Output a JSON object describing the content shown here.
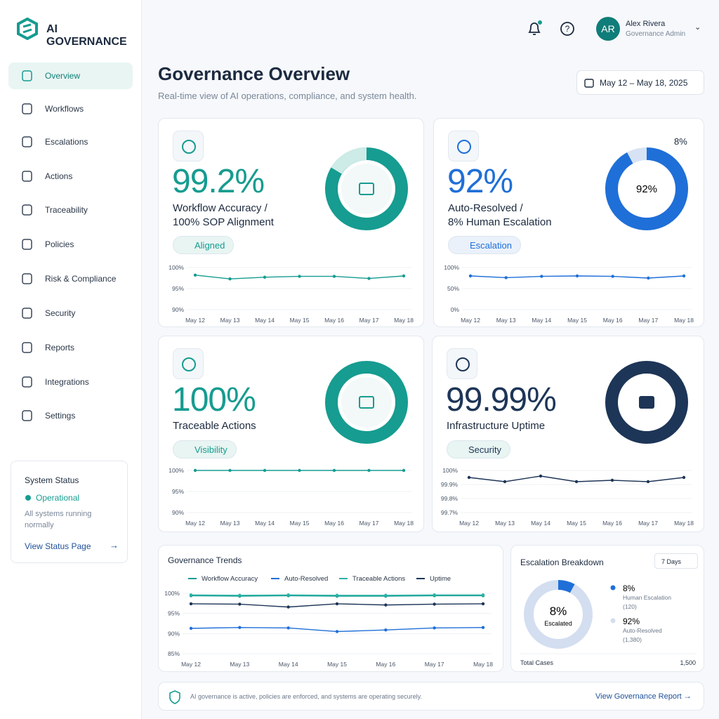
{
  "brand": "AI GOVERNANCE",
  "nav": [
    "Overview",
    "Workflows",
    "Escalations",
    "Actions",
    "Traceability",
    "Policies",
    "Risk & Compliance",
    "Security",
    "Reports",
    "Integrations",
    "Settings"
  ],
  "status": {
    "title": "System Status",
    "state": "Operational",
    "text": "All systems running normally",
    "link": "View Status Page"
  },
  "user": {
    "initials": "AR",
    "name": "Alex Rivera",
    "role": "Governance Admin"
  },
  "header": {
    "title": "Governance Overview",
    "subtitle": "Real-time view of AI operations, compliance, and system health.",
    "date_range": "May 12 – May 18, 2025"
  },
  "cards": [
    {
      "metric": "99.2%",
      "label": [
        "Workflow Accuracy /",
        "100% SOP Alignment"
      ],
      "badge": "Aligned",
      "chart": {
        "type": "line",
        "color": "#169c90",
        "categories": [
          "May 12",
          "May 13",
          "May 14",
          "May 15",
          "May 16",
          "May 17",
          "May 18"
        ],
        "values": [
          98.2,
          97.3,
          97.7,
          97.9,
          97.9,
          97.4,
          98.0
        ],
        "ylim": [
          90,
          100
        ],
        "yticks": [
          {
            "value": 100,
            "label": "100%"
          },
          {
            "value": 95,
            "label": "95%"
          },
          {
            "value": 90,
            "label": "90%"
          }
        ]
      }
    },
    {
      "metric": "92%",
      "label": [
        "Auto-Resolved /",
        "8% Human Escalation"
      ],
      "badge": "Escalation",
      "donut": {
        "values": [
          92,
          8
        ],
        "value_labels": [
          "92%",
          "8%"
        ],
        "colors": [
          "#1f6fd8",
          "#d7e3f4"
        ]
      },
      "chart": {
        "type": "line",
        "color": "#1f6fd8",
        "categories": [
          "May 12",
          "May 13",
          "May 14",
          "May 15",
          "May 16",
          "May 17",
          "May 18"
        ],
        "values": [
          80,
          76,
          79,
          80,
          79,
          75,
          80
        ],
        "ylim": [
          0,
          100
        ],
        "yticks": [
          {
            "value": 100,
            "label": "100%"
          },
          {
            "value": 50,
            "label": "50%"
          },
          {
            "value": 0,
            "label": "0%"
          }
        ]
      }
    },
    {
      "metric": "100%",
      "label": [
        "Traceable Actions"
      ],
      "badge": "Visibility",
      "chart": {
        "type": "line",
        "color": "#169c90",
        "categories": [
          "May 12",
          "May 13",
          "May 14",
          "May 15",
          "May 16",
          "May 17",
          "May 18"
        ],
        "values": [
          100,
          100,
          100,
          100,
          100,
          100,
          100
        ],
        "ylim": [
          90,
          100
        ],
        "yticks": [
          {
            "value": 100,
            "label": "100%"
          },
          {
            "value": 95,
            "label": "95%"
          },
          {
            "value": 90,
            "label": "90%"
          }
        ]
      }
    },
    {
      "metric": "99.99%",
      "label": [
        "Infrastructure Uptime"
      ],
      "badge": "Security",
      "chart": {
        "type": "line",
        "color": "#1d3557",
        "categories": [
          "May 12",
          "May 13",
          "May 14",
          "May 15",
          "May 16",
          "May 17",
          "May 18"
        ],
        "values": [
          99.95,
          99.92,
          99.96,
          99.92,
          99.93,
          99.92,
          99.95
        ],
        "ylim": [
          99.7,
          100
        ],
        "yticks": [
          {
            "value": 100,
            "label": "100%"
          },
          {
            "value": 99.9,
            "label": "99.9%"
          },
          {
            "value": 99.8,
            "label": "99.8%"
          },
          {
            "value": 99.7,
            "label": "99.7%"
          }
        ]
      }
    }
  ],
  "trends": {
    "title": "Governance Trends",
    "chart": {
      "type": "line",
      "categories": [
        "May 12",
        "May 13",
        "May 14",
        "May 15",
        "May 16",
        "May 17",
        "May 18"
      ],
      "ylim": [
        85,
        100
      ],
      "yticks": [
        {
          "value": 100,
          "label": "100%"
        },
        {
          "value": 95,
          "label": "95%"
        },
        {
          "value": 90,
          "label": "90%"
        },
        {
          "value": 85,
          "label": "85%"
        }
      ],
      "series": [
        {
          "name": "Workflow Accuracy",
          "color": "#169c90",
          "values": [
            99.4,
            99.3,
            99.4,
            99.3,
            99.3,
            99.4,
            99.4
          ]
        },
        {
          "name": "Auto-Resolved",
          "color": "#1f6fd8",
          "values": [
            91.3,
            91.5,
            91.4,
            90.5,
            90.9,
            91.4,
            91.5
          ]
        },
        {
          "name": "Traceable Actions",
          "color": "#2bb3a5",
          "values": [
            99.6,
            99.5,
            99.6,
            99.5,
            99.5,
            99.6,
            99.6
          ]
        },
        {
          "name": "Uptime",
          "color": "#1d3557",
          "values": [
            97.4,
            97.3,
            96.6,
            97.4,
            97.1,
            97.3,
            97.4
          ]
        }
      ]
    }
  },
  "breakdown": {
    "title": "Escalation Breakdown",
    "period": "7 Days",
    "center_label": "Escalated",
    "values": [
      8,
      92
    ],
    "value_labels": [
      "8%",
      "92%"
    ],
    "colors": [
      "#1f6fd8",
      "#d3def0"
    ],
    "names": [
      "Human Escalation",
      "Auto-Resolved"
    ],
    "counts": [
      "(120)",
      "(1,380)"
    ],
    "total_label": "Total Cases",
    "total": "1,500"
  },
  "footer": {
    "text": "AI governance is active, policies are enforced, and systems are operating securely.",
    "link": "View Governance Report"
  }
}
